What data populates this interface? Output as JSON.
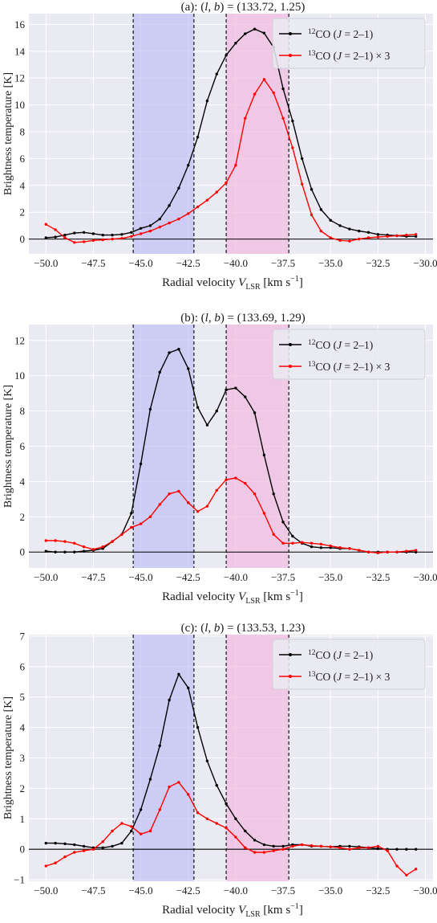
{
  "colors": {
    "plot_bg": "#eaeaf2",
    "grid": "#ffffff",
    "blue_band": "#b8b8f6",
    "pink_band": "#f0b0dc",
    "co12": "#000000",
    "co13": "#ff0000"
  },
  "legend_labels": {
    "co12": {
      "sup": "12",
      "text": "CO (J = 2–1)"
    },
    "co13": {
      "sup": "13",
      "text": "CO (J = 2–1) × 3"
    }
  },
  "shared_axes": {
    "xlabel": "Radial velocity V_LSR  [km s−1]",
    "xlabel_parts": {
      "main": "Radial velocity ",
      "v": "V",
      "sub": "LSR",
      "unit": "  [km s",
      "exp": "−1",
      "close": "]"
    },
    "ylabel": "Brightness temperature [K]",
    "xlim": [
      -50.9,
      -29.6
    ],
    "xticks": [
      -50.0,
      -47.5,
      -45.0,
      -42.5,
      -40.0,
      -37.5,
      -35.0,
      -32.5,
      -30.0
    ],
    "xtick_labels": [
      "−50.0",
      "−47.5",
      "−45.0",
      "−42.5",
      "−40.0",
      "−37.5",
      "−35.0",
      "−32.5",
      "−30.0"
    ],
    "bands": {
      "blue": [
        -45.4,
        -42.2
      ],
      "pink": [
        -40.5,
        -37.2
      ]
    },
    "dashed_lines": [
      -45.4,
      -42.2,
      -40.5,
      -37.2
    ]
  },
  "chart_data": [
    {
      "type": "line",
      "title": "(a): (l, b) = (133.72, 1.25)",
      "ylim": [
        -1.1,
        16.8
      ],
      "yticks": [
        0,
        2,
        4,
        6,
        8,
        10,
        12,
        14,
        16
      ],
      "x": [
        -50.0,
        -49.5,
        -49.0,
        -48.5,
        -48.0,
        -47.5,
        -47.0,
        -46.5,
        -46.0,
        -45.5,
        -45.0,
        -44.5,
        -44.0,
        -43.5,
        -43.0,
        -42.5,
        -42.0,
        -41.5,
        -41.0,
        -40.5,
        -40.0,
        -39.5,
        -39.0,
        -38.5,
        -38.0,
        -37.5,
        -37.0,
        -36.5,
        -36.0,
        -35.5,
        -35.0,
        -34.5,
        -34.0,
        -33.5,
        -33.0,
        -32.5,
        -32.0,
        -31.5,
        -31.0,
        -30.5
      ],
      "series": [
        {
          "name": "12CO (J = 2–1)",
          "key": "co12",
          "values": [
            0.1,
            0.15,
            0.3,
            0.45,
            0.5,
            0.4,
            0.3,
            0.3,
            0.35,
            0.5,
            0.8,
            1.0,
            1.5,
            2.5,
            3.8,
            5.5,
            7.6,
            10.3,
            12.3,
            13.7,
            14.6,
            15.3,
            15.65,
            15.35,
            14.3,
            11.2,
            8.8,
            6.0,
            3.7,
            2.2,
            1.4,
            1.0,
            0.75,
            0.6,
            0.5,
            0.35,
            0.3,
            0.25,
            0.2,
            0.2
          ]
        },
        {
          "name": "13CO (J = 2–1) × 3",
          "key": "co13",
          "values": [
            1.1,
            0.7,
            0.1,
            -0.25,
            -0.2,
            -0.1,
            -0.05,
            0.0,
            0.05,
            0.2,
            0.4,
            0.6,
            0.9,
            1.2,
            1.5,
            1.9,
            2.4,
            2.9,
            3.5,
            4.2,
            5.5,
            9.0,
            10.8,
            11.9,
            10.9,
            9.0,
            6.8,
            4.1,
            1.8,
            0.6,
            0.1,
            -0.1,
            -0.15,
            0.0,
            0.1,
            0.15,
            0.2,
            0.25,
            0.3,
            0.35
          ]
        }
      ]
    },
    {
      "type": "line",
      "title": "(b): (l, b) = (133.69, 1.29)",
      "ylim": [
        -0.9,
        12.9
      ],
      "yticks": [
        0,
        2,
        4,
        6,
        8,
        10,
        12
      ],
      "x": [
        -50.0,
        -49.5,
        -49.0,
        -48.5,
        -48.0,
        -47.5,
        -47.0,
        -46.5,
        -46.0,
        -45.5,
        -45.0,
        -44.5,
        -44.0,
        -43.5,
        -43.0,
        -42.5,
        -42.0,
        -41.5,
        -41.0,
        -40.5,
        -40.0,
        -39.5,
        -39.0,
        -38.5,
        -38.0,
        -37.5,
        -37.0,
        -36.5,
        -36.0,
        -35.5,
        -35.0,
        -34.5,
        -34.0,
        -33.5,
        -33.0,
        -32.5,
        -32.0,
        -31.5,
        -31.0,
        -30.5
      ],
      "series": [
        {
          "name": "12CO (J = 2–1)",
          "key": "co12",
          "values": [
            0.05,
            0.0,
            0.0,
            0.0,
            0.05,
            0.1,
            0.2,
            0.6,
            1.0,
            2.2,
            5.0,
            8.1,
            10.2,
            11.3,
            11.5,
            10.4,
            8.2,
            7.2,
            8.0,
            9.2,
            9.3,
            8.8,
            7.9,
            5.5,
            3.3,
            1.7,
            0.9,
            0.5,
            0.3,
            0.25,
            0.25,
            0.2,
            0.2,
            0.1,
            0.0,
            0.0,
            0.0,
            0.0,
            0.0,
            0.0
          ]
        },
        {
          "name": "13CO (J = 2–1) × 3",
          "key": "co13",
          "values": [
            0.65,
            0.65,
            0.6,
            0.5,
            0.3,
            0.15,
            0.3,
            0.6,
            1.0,
            1.4,
            1.6,
            2.0,
            2.7,
            3.3,
            3.45,
            2.8,
            2.3,
            2.6,
            3.5,
            4.1,
            4.2,
            3.9,
            3.3,
            2.2,
            1.0,
            0.5,
            0.5,
            0.55,
            0.5,
            0.45,
            0.35,
            0.25,
            0.2,
            0.1,
            0.0,
            -0.05,
            0.0,
            0.0,
            0.05,
            0.1
          ]
        }
      ]
    },
    {
      "type": "line",
      "title": "(c): (l, b) = (133.53, 1.23)",
      "ylim": [
        -1.05,
        7.05
      ],
      "yticks": [
        -1,
        0,
        1,
        2,
        3,
        4,
        5,
        6,
        7
      ],
      "x": [
        -50.0,
        -49.5,
        -49.0,
        -48.5,
        -48.0,
        -47.5,
        -47.0,
        -46.5,
        -46.0,
        -45.5,
        -45.0,
        -44.5,
        -44.0,
        -43.5,
        -43.0,
        -42.5,
        -42.0,
        -41.5,
        -41.0,
        -40.5,
        -40.0,
        -39.5,
        -39.0,
        -38.5,
        -38.0,
        -37.5,
        -37.0,
        -36.5,
        -36.0,
        -35.5,
        -35.0,
        -34.5,
        -34.0,
        -33.5,
        -33.0,
        -32.5,
        -32.0,
        -31.5,
        -31.0,
        -30.5
      ],
      "series": [
        {
          "name": "12CO (J = 2–1)",
          "key": "co12",
          "values": [
            0.2,
            0.2,
            0.18,
            0.15,
            0.1,
            0.05,
            0.05,
            0.1,
            0.2,
            0.6,
            1.3,
            2.3,
            3.4,
            4.9,
            5.75,
            5.3,
            4.0,
            2.9,
            2.1,
            1.5,
            1.0,
            0.6,
            0.3,
            0.15,
            0.1,
            0.1,
            0.15,
            0.15,
            0.1,
            0.1,
            0.08,
            0.1,
            0.1,
            0.08,
            0.05,
            0.02,
            0.0,
            0.0,
            0.0,
            0.0
          ]
        },
        {
          "name": "13CO (J = 2–1) × 3",
          "key": "co13",
          "values": [
            -0.55,
            -0.45,
            -0.25,
            -0.1,
            -0.05,
            0.0,
            0.25,
            0.6,
            0.85,
            0.75,
            0.5,
            0.6,
            1.3,
            2.05,
            2.2,
            1.8,
            1.2,
            1.0,
            0.85,
            0.7,
            0.4,
            0.05,
            -0.1,
            -0.1,
            -0.05,
            0.0,
            0.1,
            0.15,
            0.12,
            0.1,
            0.08,
            0.05,
            0.0,
            0.05,
            0.05,
            0.1,
            -0.05,
            -0.55,
            -0.85,
            -0.65
          ]
        }
      ]
    }
  ]
}
